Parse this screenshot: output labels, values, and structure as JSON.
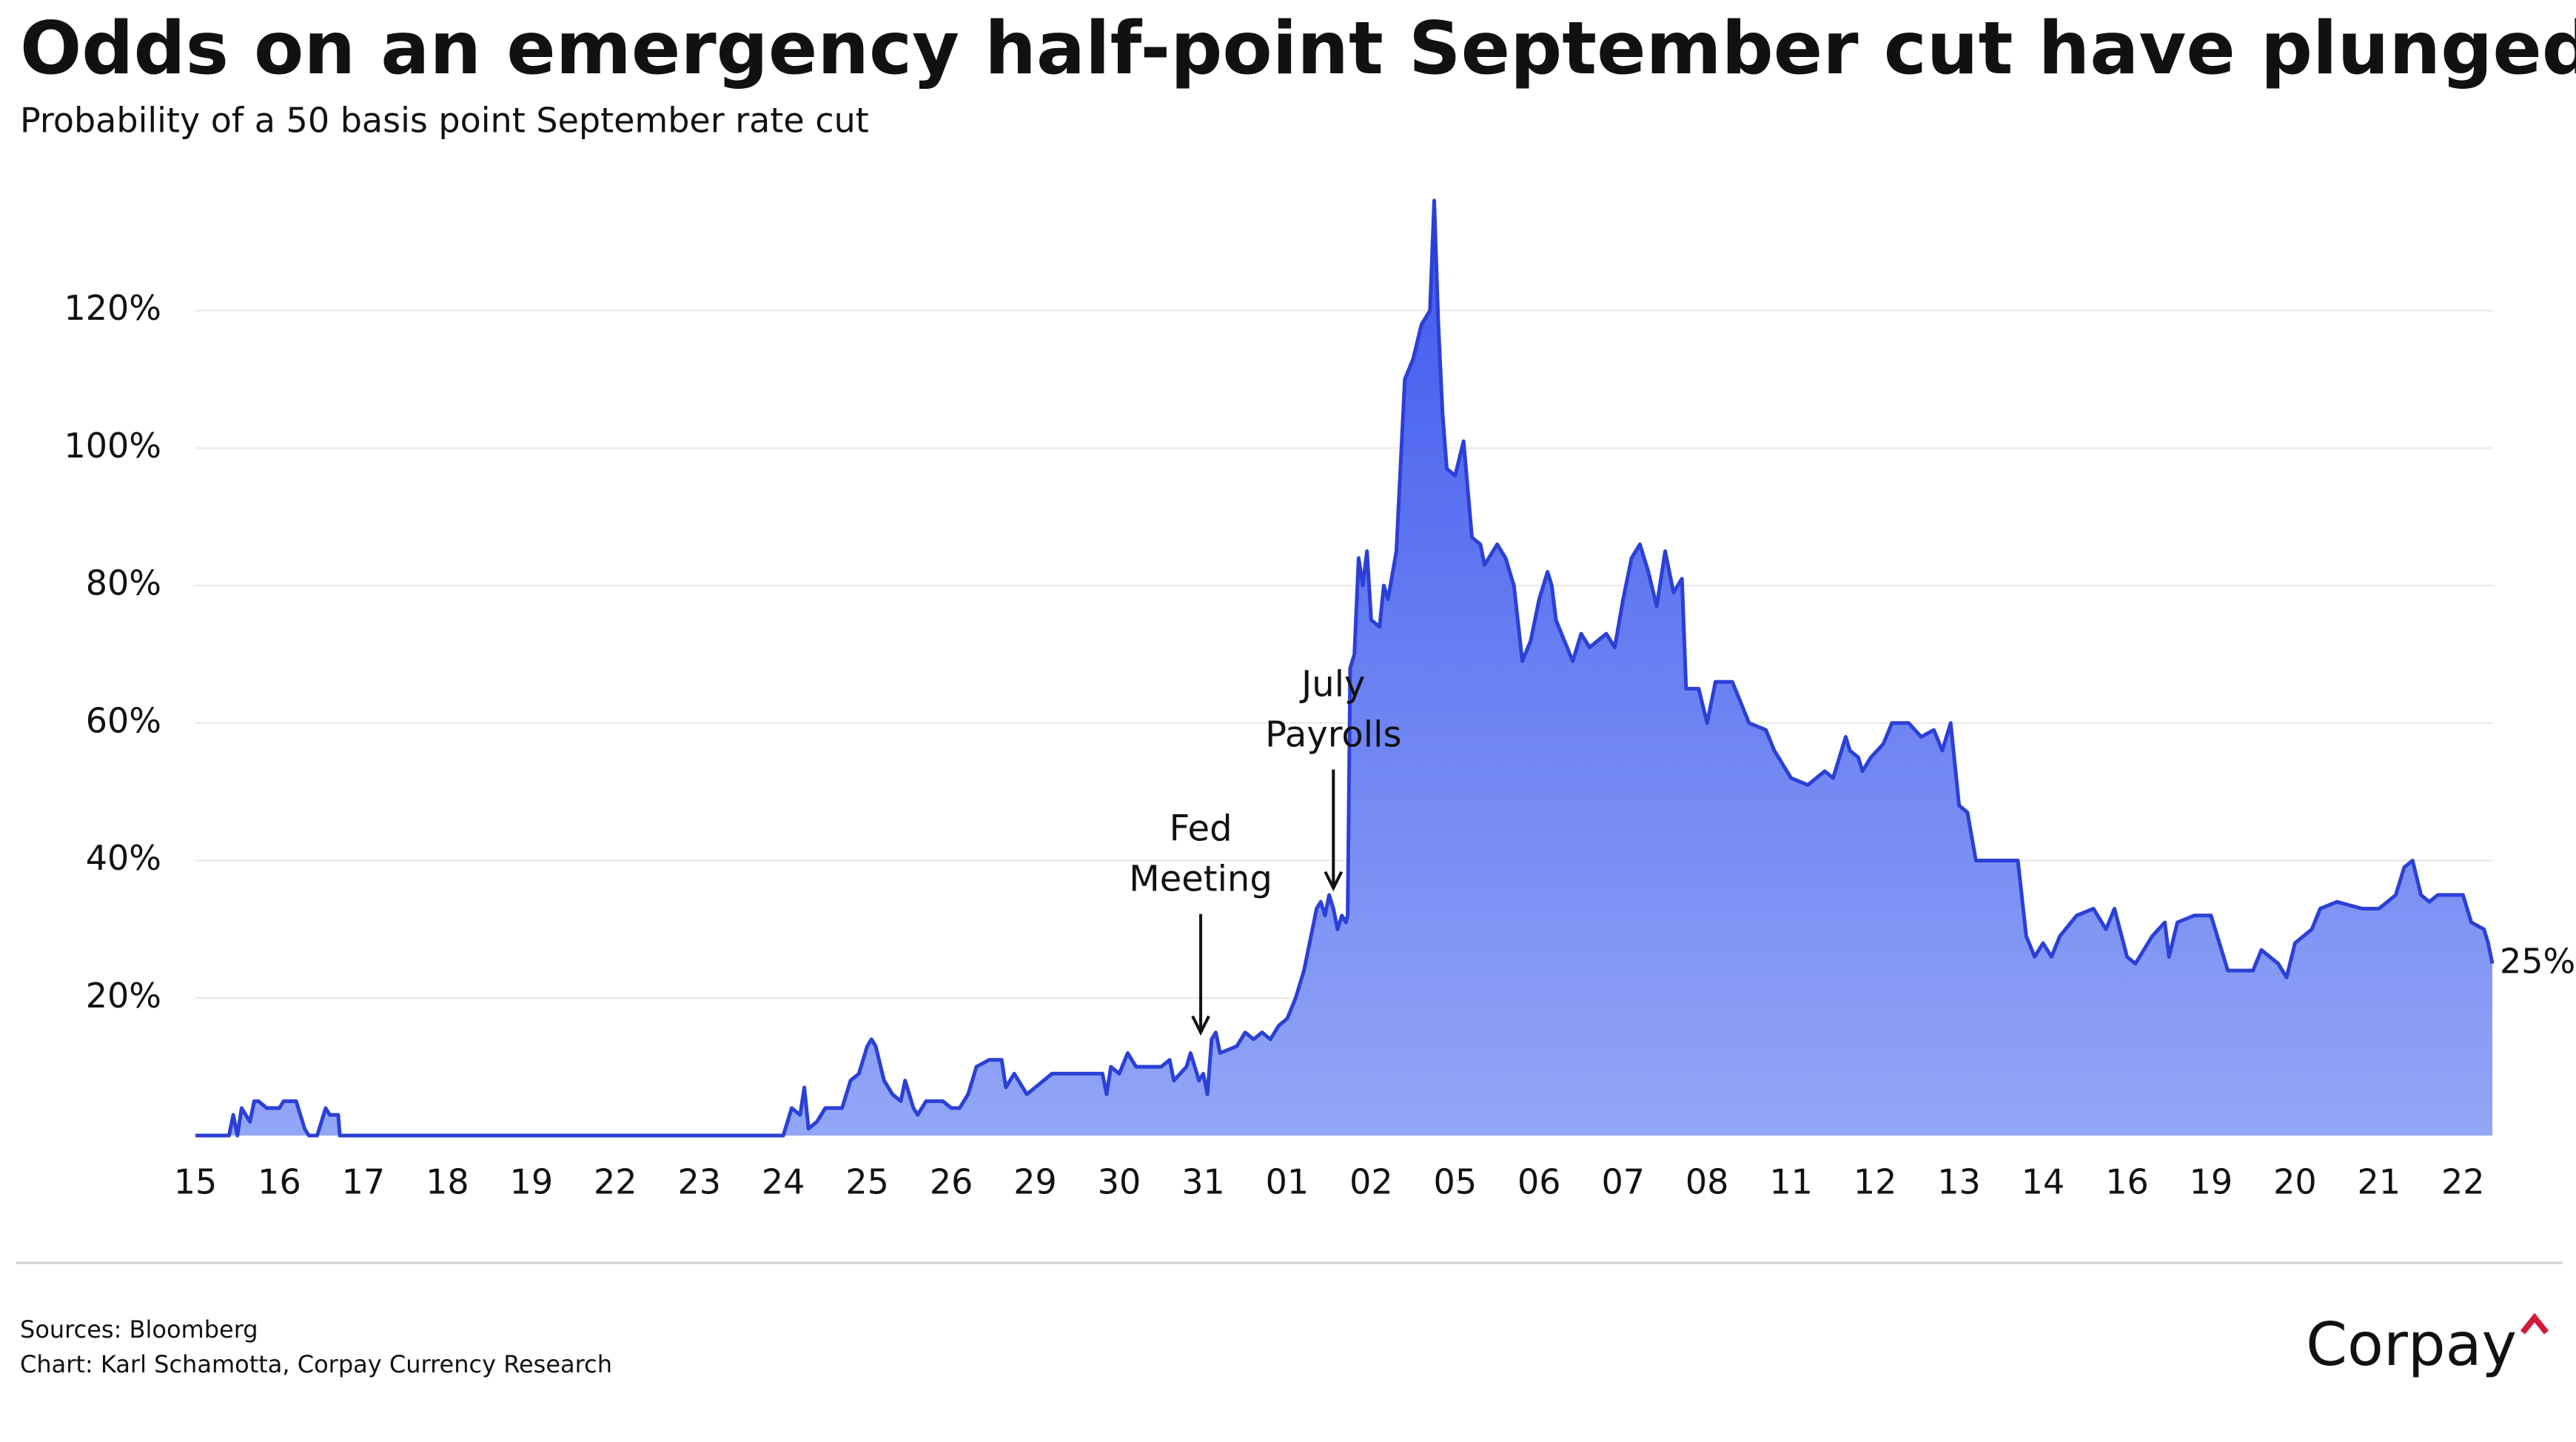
{
  "chart_data": {
    "type": "area",
    "title": "Odds on an emergency half-point September cut have plunged.",
    "subtitle": "Probability of a 50 basis point September rate cut",
    "x": [
      0,
      0.4,
      0.45,
      0.5,
      0.55,
      0.65,
      0.7,
      0.75,
      0.85,
      1.0,
      1.05,
      1.2,
      1.25,
      1.3,
      1.35,
      1.45,
      1.55,
      1.6,
      1.7,
      1.72,
      7.0,
      7.1,
      7.2,
      7.25,
      7.3,
      7.4,
      7.5,
      7.7,
      7.8,
      7.9,
      8.0,
      8.05,
      8.1,
      8.2,
      8.3,
      8.4,
      8.45,
      8.55,
      8.6,
      8.7,
      8.9,
      9.0,
      9.1,
      9.2,
      9.3,
      9.45,
      9.6,
      9.65,
      9.75,
      9.9,
      10.0,
      10.1,
      10.2,
      10.8,
      10.85,
      10.9,
      11.0,
      11.1,
      11.2,
      11.5,
      11.6,
      11.65,
      11.8,
      11.85,
      11.95,
      12.0,
      12.05,
      12.1,
      12.15,
      12.2,
      12.4,
      12.5,
      12.6,
      12.7,
      12.8,
      12.9,
      13.0,
      13.1,
      13.2,
      13.3,
      13.35,
      13.4,
      13.45,
      13.5,
      13.55,
      13.6,
      13.65,
      13.7,
      13.72,
      13.75,
      13.8,
      13.85,
      13.9,
      13.95,
      14.0,
      14.1,
      14.15,
      14.2,
      14.3,
      14.4,
      14.5,
      14.6,
      14.7,
      14.75,
      14.8,
      14.85,
      14.9,
      15.0,
      15.1,
      15.2,
      15.3,
      15.35,
      15.5,
      15.6,
      15.7,
      15.8,
      15.9,
      16.0,
      16.1,
      16.15,
      16.2,
      16.3,
      16.4,
      16.5,
      16.6,
      16.8,
      16.9,
      17.0,
      17.1,
      17.2,
      17.3,
      17.4,
      17.5,
      17.6,
      17.7,
      17.75,
      17.9,
      18.0,
      18.1,
      18.3,
      18.4,
      18.5,
      18.7,
      18.8,
      18.9,
      19.0,
      19.2,
      19.4,
      19.5,
      19.65,
      19.7,
      19.8,
      19.85,
      19.95,
      20.1,
      20.2,
      20.4,
      20.55,
      20.7,
      20.8,
      20.9,
      21.0,
      21.1,
      21.2,
      21.4,
      21.55,
      21.7,
      21.8,
      21.9,
      22.0,
      22.1,
      22.2,
      22.4,
      22.6,
      22.75,
      22.85,
      23.0,
      23.1,
      23.3,
      23.45,
      23.5,
      23.6,
      23.8,
      24.0,
      24.1,
      24.2,
      24.5,
      24.6,
      24.7,
      24.8,
      24.9,
      25.0,
      25.2,
      25.3,
      25.5,
      25.8,
      26.0,
      26.1,
      26.2,
      26.3,
      26.4,
      26.5,
      26.6,
      26.7,
      27.0,
      27.1,
      27.25,
      27.3,
      27.35
    ],
    "series": [
      {
        "color": "#2b40d6",
        "values": [
          0,
          0,
          3,
          0,
          4,
          2,
          5,
          5,
          4,
          4,
          5,
          5,
          3,
          1,
          0,
          0,
          4,
          3,
          3,
          0,
          0,
          4,
          3,
          7,
          1,
          2,
          4,
          4,
          8,
          9,
          13,
          14,
          13,
          8,
          6,
          5,
          8,
          4,
          3,
          5,
          5,
          4,
          4,
          6,
          10,
          11,
          11,
          7,
          9,
          6,
          7,
          8,
          9,
          9,
          6,
          10,
          9,
          12,
          10,
          10,
          11,
          8,
          10,
          12,
          8,
          9,
          6,
          14,
          15,
          12,
          13,
          15,
          14,
          15,
          14,
          16,
          17,
          20,
          24,
          30,
          33,
          34,
          32,
          35,
          33,
          30,
          32,
          31,
          32,
          68,
          70,
          84,
          80,
          85,
          75,
          74,
          80,
          78,
          85,
          110,
          113,
          118,
          120,
          136,
          118,
          105,
          97,
          96,
          101,
          87,
          86,
          83,
          86,
          84,
          80,
          69,
          72,
          78,
          82,
          80,
          75,
          72,
          69,
          73,
          71,
          73,
          71,
          78,
          84,
          86,
          82,
          77,
          85,
          79,
          81,
          65,
          65,
          60,
          66,
          66,
          63,
          60,
          59,
          56,
          54,
          52,
          51,
          53,
          52,
          58,
          56,
          55,
          53,
          55,
          57,
          60,
          60,
          58,
          59,
          56,
          60,
          48,
          47,
          40,
          40,
          40,
          40,
          29,
          26,
          28,
          26,
          29,
          32,
          33,
          30,
          33,
          26,
          25,
          29,
          31,
          26,
          31,
          32,
          32,
          28,
          24,
          24,
          27,
          26,
          25,
          23,
          28,
          30,
          33,
          34,
          33,
          33,
          34,
          35,
          39,
          40,
          35,
          34,
          35,
          35,
          31,
          30,
          28,
          25
        ]
      }
    ],
    "xlim": [
      0,
      27.35
    ],
    "xticks": [
      {
        "value": 0,
        "label": "15"
      },
      {
        "value": 1,
        "label": "16"
      },
      {
        "value": 2,
        "label": "17"
      },
      {
        "value": 3,
        "label": "18"
      },
      {
        "value": 4,
        "label": "19"
      },
      {
        "value": 5,
        "label": "22"
      },
      {
        "value": 6,
        "label": "23"
      },
      {
        "value": 7,
        "label": "24"
      },
      {
        "value": 8,
        "label": "25"
      },
      {
        "value": 9,
        "label": "26"
      },
      {
        "value": 10,
        "label": "29"
      },
      {
        "value": 11,
        "label": "30"
      },
      {
        "value": 12,
        "label": "31"
      },
      {
        "value": 13,
        "label": "01"
      },
      {
        "value": 14,
        "label": "02"
      },
      {
        "value": 15,
        "label": "05"
      },
      {
        "value": 16,
        "label": "06"
      },
      {
        "value": 17,
        "label": "07"
      },
      {
        "value": 18,
        "label": "08"
      },
      {
        "value": 19,
        "label": "11"
      },
      {
        "value": 20,
        "label": "12"
      },
      {
        "value": 21,
        "label": "13"
      },
      {
        "value": 22,
        "label": "14"
      },
      {
        "value": 23,
        "label": "16"
      },
      {
        "value": 24,
        "label": "19"
      },
      {
        "value": 25,
        "label": "20"
      },
      {
        "value": 26,
        "label": "21"
      },
      {
        "value": 27,
        "label": "22"
      }
    ],
    "ylim": [
      0,
      136
    ],
    "yticks": [
      {
        "value": 20,
        "label": "20%"
      },
      {
        "value": 40,
        "label": "40%"
      },
      {
        "value": 60,
        "label": "60%"
      },
      {
        "value": 80,
        "label": "80%"
      },
      {
        "value": 100,
        "label": "100%"
      },
      {
        "value": 120,
        "label": "120%"
      }
    ],
    "grid": true,
    "annotations": [
      {
        "lines": [
          "Fed",
          "Meeting"
        ],
        "x": 11.97,
        "y": 15
      },
      {
        "lines": [
          "July",
          "Payrolls"
        ],
        "x": 13.55,
        "y": 36
      }
    ],
    "end_label": {
      "text": "25%",
      "x": 27.35,
      "y": 25
    },
    "sources": "Sources: Bloomberg",
    "credit": "Chart: Karl Schamotta, Corpay Currency Research",
    "logo": "Corpay"
  }
}
